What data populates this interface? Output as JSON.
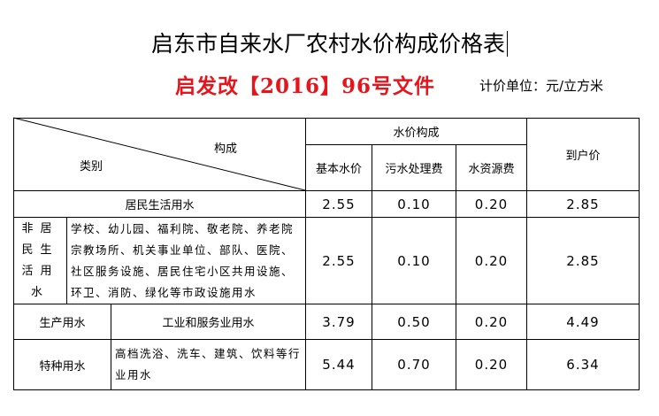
{
  "header": {
    "title": "启东市自来水厂农村水价构成价格表",
    "document": "启发改【2016】96号文件",
    "unit": "计价单位：元/立方米"
  },
  "table": {
    "header": {
      "composition": "构成",
      "category": "类别",
      "water_price_composition": "水价构成",
      "columns": [
        "基本水价",
        "污水处理费",
        "水资源费"
      ],
      "final_price": "到户价"
    },
    "rows": [
      {
        "category": "居民生活用水",
        "values": [
          "2.55",
          "0.10",
          "0.20",
          "2.85"
        ]
      },
      {
        "category": "非居民生活用水",
        "description": "学校、幼儿园、福利院、敬老院、养老院宗教场所、机关事业单位、部队、医院、社区服务设施、居民住宅小区共用设施、环卫、消防、绿化等市政设施用水",
        "values": [
          "2.55",
          "0.10",
          "0.20",
          "2.85"
        ]
      },
      {
        "category": "生产用水",
        "description": "工业和服务业用水",
        "values": [
          "3.79",
          "0.50",
          "0.20",
          "4.49"
        ]
      },
      {
        "category": "特种用水",
        "description": "高档洗浴、洗车、建筑、饮料等行业用水",
        "values": [
          "5.44",
          "0.70",
          "0.20",
          "6.34"
        ]
      }
    ]
  }
}
